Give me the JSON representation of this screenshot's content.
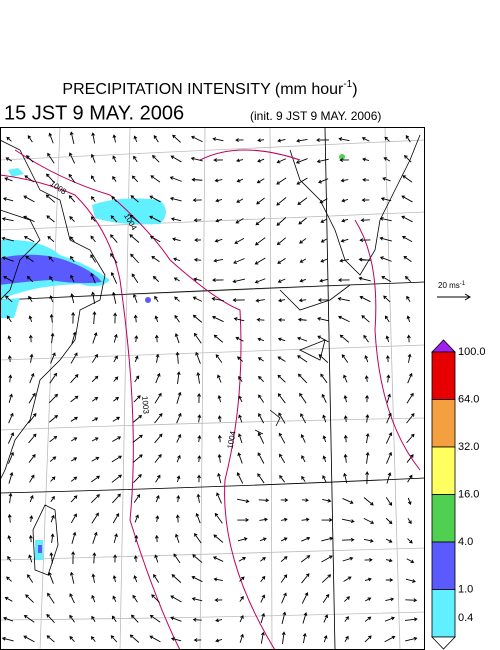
{
  "header": {
    "title": "PRECIPITATION INTENSITY (mm hour",
    "title_sup": "-1",
    "title_end": ")",
    "valid": "15 JST 9 MAY. 2006",
    "init": "(init. 9 JST 9 MAY. 2006)"
  },
  "vector_legend": {
    "label": "20 ms",
    "sup": "-1"
  },
  "colorbar": {
    "levels": [
      {
        "label": "100.0",
        "color": "#e60000"
      },
      {
        "label": "64.0",
        "color": "#f5a040"
      },
      {
        "label": "32.0",
        "color": "#ffff60"
      },
      {
        "label": "16.0",
        "color": "#50d050"
      },
      {
        "label": "4.0",
        "color": "#5a5aff"
      },
      {
        "label": "1.0",
        "color": "#60f0ff"
      },
      {
        "label": "0.4",
        "color": "#ffffff"
      }
    ],
    "over_color": "#a020f0"
  },
  "contours": [
    {
      "label": "1008"
    },
    {
      "label": "1004"
    },
    {
      "label": "1003"
    },
    {
      "label": "1004"
    }
  ]
}
